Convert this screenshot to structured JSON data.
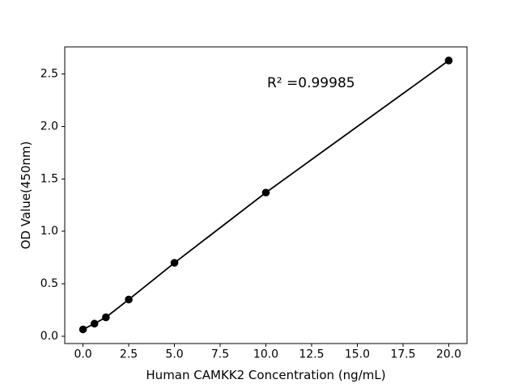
{
  "figure": {
    "background": "#ffffff",
    "foreground": "#000000"
  },
  "chart_data": {
    "type": "line",
    "marker": "circle",
    "title": "",
    "xlabel": "Human CAMKK2 Concentration (ng/mL)",
    "ylabel": "OD Value(450nm)",
    "x": [
      0,
      0.625,
      1.25,
      2.5,
      5,
      10,
      20
    ],
    "y": [
      0.065,
      0.12,
      0.18,
      0.35,
      0.7,
      1.37,
      2.63
    ],
    "annotation": {
      "text": "R² =0.99985"
    },
    "xticks": [
      0,
      2.5,
      5,
      7.5,
      10,
      12.5,
      15,
      17.5,
      20
    ],
    "xtick_labels": [
      "0.0",
      "2.5",
      "5.0",
      "7.5",
      "10.0",
      "12.5",
      "15.0",
      "17.5",
      "20.0"
    ],
    "yticks": [
      0,
      0.5,
      1.0,
      1.5,
      2.0,
      2.5
    ],
    "ytick_labels": [
      "0.0",
      "0.5",
      "1.0",
      "1.5",
      "2.0",
      "2.5"
    ],
    "xlim": [
      -1,
      21
    ],
    "ylim": [
      -0.07,
      2.76
    ],
    "grid": false,
    "legend": null,
    "line_color": "#000000",
    "marker_color": "#000000"
  }
}
